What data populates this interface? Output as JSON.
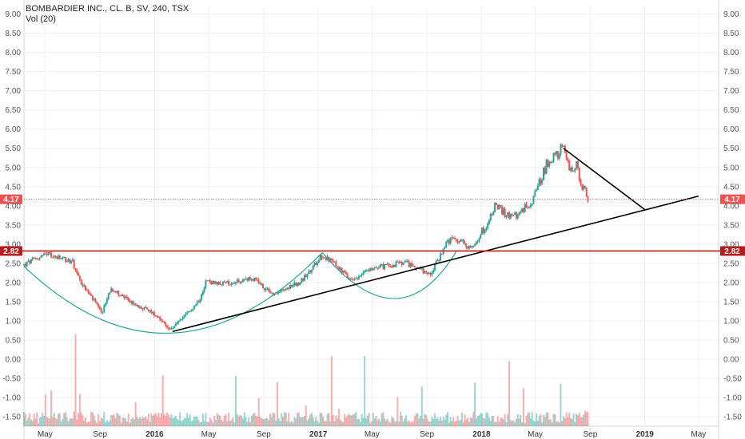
{
  "header": {
    "symbol_title": "BOMBARDIER INC., CL. B, SV, 240, TSX",
    "volume_label": "Vol (20)"
  },
  "colors": {
    "up": "#26a69a",
    "down": "#ef5350",
    "grid": "#eef1f5",
    "axis_text": "#555555",
    "price_line": "#ef5350",
    "support_line": "#b71c1c",
    "trendline": "#000000",
    "cup_curve": "#26a69a"
  },
  "chart_data": {
    "type": "candlestick",
    "title": "BOMBARDIER INC., CL. B, SV, 240, TSX",
    "indicator": "Vol (20)",
    "x_axis": {
      "range": [
        "2015-03-15",
        "2019-06-15"
      ],
      "ticks": [
        {
          "label": "May",
          "date": "2015-05-01"
        },
        {
          "label": "Sep",
          "date": "2015-09-01"
        },
        {
          "label": "2016",
          "date": "2016-01-01"
        },
        {
          "label": "May",
          "date": "2016-05-01"
        },
        {
          "label": "Sep",
          "date": "2016-09-01"
        },
        {
          "label": "2017",
          "date": "2017-01-01"
        },
        {
          "label": "May",
          "date": "2017-05-01"
        },
        {
          "label": "Sep",
          "date": "2017-09-01"
        },
        {
          "label": "2018",
          "date": "2018-01-01"
        },
        {
          "label": "May",
          "date": "2018-05-01"
        },
        {
          "label": "Sep",
          "date": "2018-09-01"
        },
        {
          "label": "2019",
          "date": "2019-01-01"
        },
        {
          "label": "May",
          "date": "2019-05-01"
        }
      ]
    },
    "y_axis": {
      "range": [
        -1.75,
        9.2
      ],
      "ticks": [
        "9.00",
        "8.50",
        "8.00",
        "7.50",
        "7.00",
        "6.50",
        "6.00",
        "5.50",
        "5.00",
        "4.50",
        "4.00",
        "3.50",
        "3.00",
        "2.50",
        "2.00",
        "1.50",
        "1.00",
        "0.50",
        "0.00",
        "-0.50",
        "-1.00",
        "-1.50"
      ]
    },
    "price_path": [
      {
        "date": "2015-03-15",
        "price": 2.45
      },
      {
        "date": "2015-04-15",
        "price": 2.65
      },
      {
        "date": "2015-05-10",
        "price": 2.72
      },
      {
        "date": "2015-06-01",
        "price": 2.62
      },
      {
        "date": "2015-07-01",
        "price": 2.55
      },
      {
        "date": "2015-07-20",
        "price": 2.0
      },
      {
        "date": "2015-08-20",
        "price": 1.5
      },
      {
        "date": "2015-09-05",
        "price": 1.2
      },
      {
        "date": "2015-09-25",
        "price": 1.85
      },
      {
        "date": "2015-10-20",
        "price": 1.65
      },
      {
        "date": "2015-11-20",
        "price": 1.4
      },
      {
        "date": "2015-12-15",
        "price": 1.3
      },
      {
        "date": "2016-01-10",
        "price": 1.1
      },
      {
        "date": "2016-02-05",
        "price": 0.75
      },
      {
        "date": "2016-02-25",
        "price": 1.0
      },
      {
        "date": "2016-03-20",
        "price": 1.25
      },
      {
        "date": "2016-04-10",
        "price": 1.55
      },
      {
        "date": "2016-04-25",
        "price": 2.05
      },
      {
        "date": "2016-05-20",
        "price": 1.95
      },
      {
        "date": "2016-06-20",
        "price": 2.0
      },
      {
        "date": "2016-07-20",
        "price": 2.05
      },
      {
        "date": "2016-08-15",
        "price": 2.12
      },
      {
        "date": "2016-09-01",
        "price": 1.85
      },
      {
        "date": "2016-09-25",
        "price": 1.7
      },
      {
        "date": "2016-10-20",
        "price": 1.85
      },
      {
        "date": "2016-11-20",
        "price": 2.0
      },
      {
        "date": "2016-12-15",
        "price": 2.3
      },
      {
        "date": "2017-01-05",
        "price": 2.7
      },
      {
        "date": "2017-01-25",
        "price": 2.6
      },
      {
        "date": "2017-02-20",
        "price": 2.35
      },
      {
        "date": "2017-03-15",
        "price": 2.05
      },
      {
        "date": "2017-04-10",
        "price": 2.25
      },
      {
        "date": "2017-05-10",
        "price": 2.4
      },
      {
        "date": "2017-06-10",
        "price": 2.45
      },
      {
        "date": "2017-07-15",
        "price": 2.5
      },
      {
        "date": "2017-08-10",
        "price": 2.4
      },
      {
        "date": "2017-09-05",
        "price": 2.2
      },
      {
        "date": "2017-09-25",
        "price": 2.55
      },
      {
        "date": "2017-10-10",
        "price": 2.95
      },
      {
        "date": "2017-10-25",
        "price": 3.1
      },
      {
        "date": "2017-11-20",
        "price": 3.05
      },
      {
        "date": "2017-12-10",
        "price": 2.9
      },
      {
        "date": "2017-12-25",
        "price": 3.2
      },
      {
        "date": "2018-01-15",
        "price": 3.55
      },
      {
        "date": "2018-02-01",
        "price": 4.05
      },
      {
        "date": "2018-02-20",
        "price": 3.8
      },
      {
        "date": "2018-03-15",
        "price": 3.7
      },
      {
        "date": "2018-04-10",
        "price": 3.95
      },
      {
        "date": "2018-05-01",
        "price": 4.3
      },
      {
        "date": "2018-05-25",
        "price": 5.05
      },
      {
        "date": "2018-06-15",
        "price": 5.3
      },
      {
        "date": "2018-07-01",
        "price": 5.5
      },
      {
        "date": "2018-07-15",
        "price": 4.95
      },
      {
        "date": "2018-07-30",
        "price": 5.1
      },
      {
        "date": "2018-08-15",
        "price": 4.5
      },
      {
        "date": "2018-08-28",
        "price": 4.17
      }
    ],
    "current_price": 4.17,
    "current_price_label": "4.17",
    "support_level": 2.82,
    "support_label": "2.82",
    "drawings": {
      "trendline": [
        {
          "date": "2016-02-10",
          "price": 0.72
        },
        {
          "date": "2019-05-01",
          "price": 4.25
        }
      ],
      "resistance_line": [
        {
          "date": "2018-07-03",
          "price": 5.5
        },
        {
          "date": "2019-01-01",
          "price": 3.9
        }
      ],
      "cup_left": [
        {
          "date": "2015-03-15",
          "price": 2.42
        },
        {
          "date": "2016-02-10",
          "price": 0.68
        },
        {
          "date": "2017-01-10",
          "price": 2.78
        }
      ],
      "cup_right": [
        {
          "date": "2017-01-10",
          "price": 2.78
        },
        {
          "date": "2017-06-20",
          "price": 1.58
        },
        {
          "date": "2017-11-05",
          "price": 2.8
        }
      ]
    },
    "volume_panel": {
      "baseline": -1.75,
      "max_height_price_units": 2.5
    },
    "grid": true,
    "legend": "none"
  }
}
